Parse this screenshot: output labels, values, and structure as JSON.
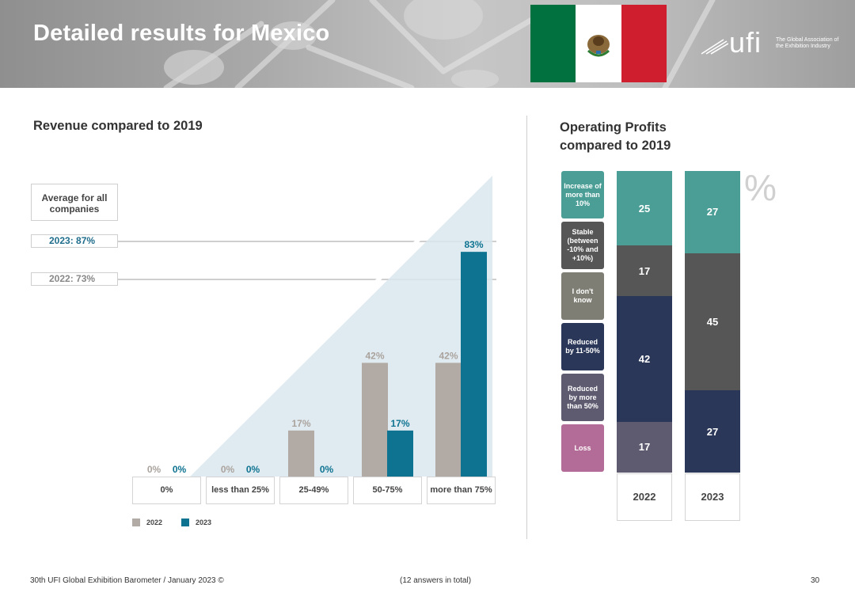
{
  "header": {
    "title": "Detailed results for Mexico",
    "logo_word": "ufi",
    "logo_tagline": "The Global Association of the Exhibition Industry"
  },
  "revenue": {
    "title": "Revenue compared to 2019",
    "average_label": "Average for all companies",
    "average_2023": "2023: 87%",
    "average_2022": "2022: 73%"
  },
  "operating": {
    "title": "Operating Profits compared to 2019",
    "unit_symbol": "%",
    "legend": [
      {
        "label": "Increase of more than 10%",
        "color": "#4a9e96"
      },
      {
        "label": "Stable (between -10% and +10%)",
        "color": "#565656"
      },
      {
        "label": "I don't know",
        "color": "#7f7e74"
      },
      {
        "label": "Reduced by 11-50%",
        "color": "#2a3758"
      },
      {
        "label": "Reduced by more than 50%",
        "color": "#5e5a70"
      },
      {
        "label": "Loss",
        "color": "#b36b97"
      }
    ]
  },
  "chart_data": [
    {
      "type": "bar",
      "title": "Revenue compared to 2019",
      "categories": [
        "0%",
        "less than 25%",
        "25-49%",
        "50-75%",
        "more than 75%"
      ],
      "series": [
        {
          "name": "2022",
          "values": [
            0,
            0,
            17,
            42,
            42
          ],
          "labels": [
            "0%",
            "0%",
            "17%",
            "42%",
            "42%"
          ],
          "color": "#b2aba5"
        },
        {
          "name": "2023",
          "values": [
            0,
            0,
            0,
            17,
            83
          ],
          "labels": [
            "0%",
            "0%",
            "0%",
            "17%",
            "83%"
          ],
          "color": "#0e7391"
        }
      ],
      "ylim": [
        0,
        100
      ],
      "legend": "bottom-left",
      "grid": false
    },
    {
      "type": "bar",
      "title": "Operating Profits compared to 2019",
      "stacked": true,
      "categories": [
        "2022",
        "2023"
      ],
      "series": [
        {
          "name": "Increase of more than 10%",
          "values": [
            25,
            27
          ],
          "color": "#4a9e96"
        },
        {
          "name": "Stable (between -10% and +10%)",
          "values": [
            17,
            45
          ],
          "color": "#565656"
        },
        {
          "name": "I don't know",
          "values": [
            0,
            0
          ],
          "color": "#7f7e74"
        },
        {
          "name": "Reduced by 11-50%",
          "values": [
            42,
            27
          ],
          "color": "#2a3758"
        },
        {
          "name": "Reduced by more than 50%",
          "values": [
            17,
            0
          ],
          "color": "#5e5a70"
        },
        {
          "name": "Loss",
          "values": [
            0,
            0
          ],
          "color": "#b36b97"
        }
      ],
      "legend": "left",
      "grid": false
    }
  ],
  "footer": {
    "left": "30th UFI Global Exhibition Barometer / January 2023 ©",
    "middle": "(12 answers in total)",
    "page": "30"
  }
}
